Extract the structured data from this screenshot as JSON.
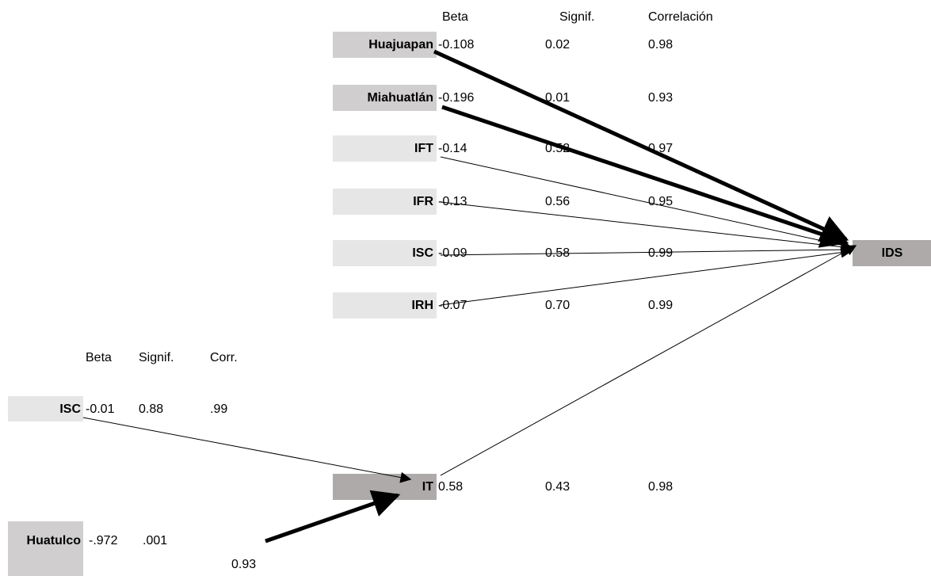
{
  "top_header": {
    "beta": "Beta",
    "signif": "Signif.",
    "corr": "Correlación"
  },
  "top_nodes": [
    {
      "label": "Huajuapan",
      "beta": "-0.108",
      "signif": "0.02",
      "corr": "0.98"
    },
    {
      "label": "Miahuatlán",
      "beta": "-0.196",
      "signif": "0.01",
      "corr": "0.93"
    },
    {
      "label": "IFT",
      "beta": "-0.14",
      "signif": "0.52",
      "corr": "0.97"
    },
    {
      "label": "IFR",
      "beta": "-0.13",
      "signif": "0.56",
      "corr": "0.95"
    },
    {
      "label": "ISC",
      "beta": "-0.09",
      "signif": "0.58",
      "corr": "0.99"
    },
    {
      "label": "IRH",
      "beta": "-0.07",
      "signif": "0.70",
      "corr": "0.99"
    }
  ],
  "target": {
    "label": "IDS"
  },
  "bottom_header": {
    "beta": "Beta",
    "signif": "Signif.",
    "corr": "Corr."
  },
  "bottom_nodes": [
    {
      "label": "ISC",
      "beta": "-0.01",
      "signif": "0.88",
      "corr": ".99"
    },
    {
      "label": "Huatulco",
      "beta": "-.972",
      "signif": ".001",
      "corr": "0.93"
    }
  ],
  "it_node": {
    "label": "IT",
    "beta": "0.58",
    "signif": "0.43",
    "corr": "0.98"
  }
}
